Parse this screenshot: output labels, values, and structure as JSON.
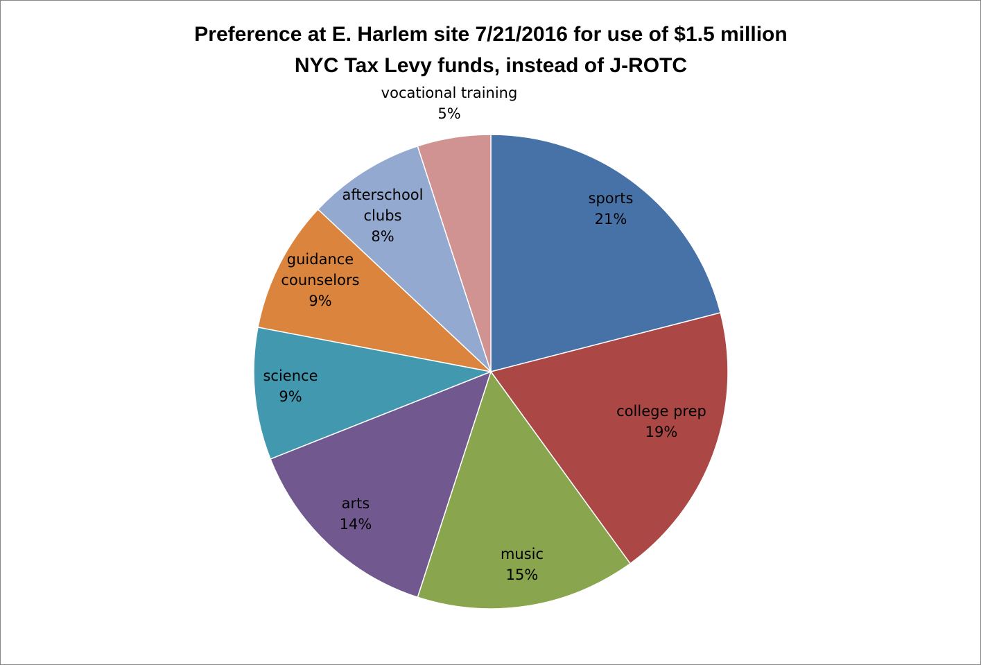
{
  "chart_data": {
    "type": "pie",
    "title_lines": [
      "Preference at E. Harlem site 7/21/2016 for use of $1.5 million",
      "NYC Tax Levy funds,  instead of J-ROTC"
    ],
    "legend": "none",
    "data_labels": "category and percentage",
    "slices": [
      {
        "name": "sports",
        "label_lines": [
          "sports"
        ],
        "percent_label": "21%",
        "value": 21,
        "color": "#4672A8"
      },
      {
        "name": "college prep",
        "label_lines": [
          "college prep"
        ],
        "percent_label": "19%",
        "value": 19,
        "color": "#AB4744"
      },
      {
        "name": "music",
        "label_lines": [
          "music"
        ],
        "percent_label": "15%",
        "value": 15,
        "color": "#89A54E"
      },
      {
        "name": "arts",
        "label_lines": [
          "arts"
        ],
        "percent_label": "14%",
        "value": 14,
        "color": "#71588F"
      },
      {
        "name": "science",
        "label_lines": [
          "science"
        ],
        "percent_label": "9%",
        "value": 9,
        "color": "#4198AF"
      },
      {
        "name": "guidance counselors",
        "label_lines": [
          "guidance",
          "counselors"
        ],
        "percent_label": "9%",
        "value": 9,
        "color": "#DB843D"
      },
      {
        "name": "afterschool clubs",
        "label_lines": [
          "afterschool",
          "clubs"
        ],
        "percent_label": "8%",
        "value": 8,
        "color": "#93A9CF"
      },
      {
        "name": "vocational training",
        "label_lines": [
          "vocational training"
        ],
        "percent_label": "5%",
        "value": 5,
        "color": "#D09392"
      }
    ]
  }
}
